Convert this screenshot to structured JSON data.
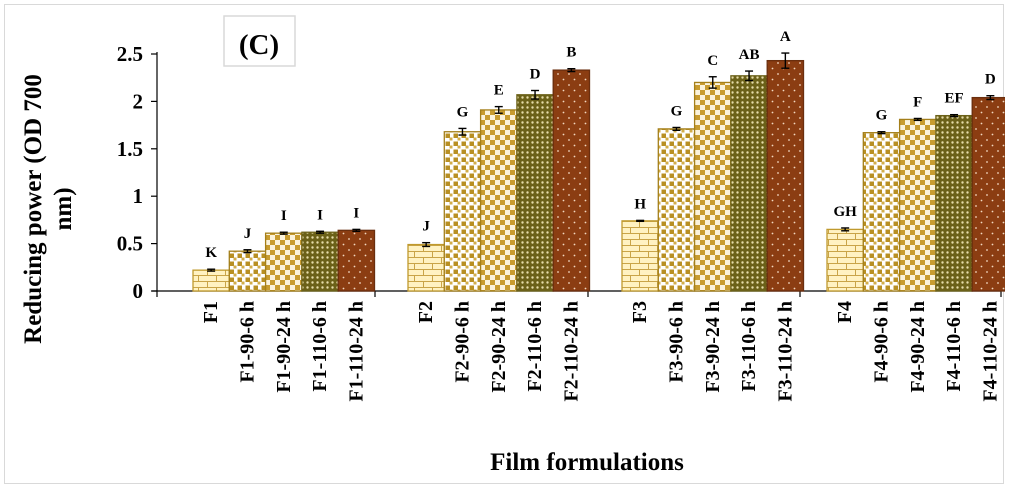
{
  "chart_data": {
    "type": "bar",
    "panel_label": "(C)",
    "xlabel": "Film formulations",
    "ylabel": "Reducing power (OD 700 nm)",
    "ylabel_lines": [
      "Reducing power (OD 700",
      "nm)"
    ],
    "ylim": [
      0,
      2.5
    ],
    "yticks": [
      "0",
      "0.5",
      "1",
      "1.5",
      "2",
      "2.5"
    ],
    "ytick_values": [
      0,
      0.5,
      1,
      1.5,
      2,
      2.5
    ],
    "grid": false,
    "legend": "none",
    "groups": [
      {
        "categories": [
          "F1",
          "F1-90-6 h",
          "F1-90-24 h",
          "F1-110-6 h",
          "F1-110-24 h"
        ],
        "values": [
          0.22,
          0.42,
          0.61,
          0.62,
          0.64
        ],
        "errors": [
          0.01,
          0.015,
          0.01,
          0.01,
          0.01
        ],
        "letters": [
          "K",
          "J",
          "I",
          "I",
          "I"
        ]
      },
      {
        "categories": [
          "F2",
          "F2-90-6 h",
          "F2-90-24 h",
          "F2-110-6 h",
          "F2-110-24 h"
        ],
        "values": [
          0.49,
          1.68,
          1.91,
          2.07,
          2.33
        ],
        "errors": [
          0.02,
          0.035,
          0.035,
          0.045,
          0.015
        ],
        "letters": [
          "J",
          "G",
          "E",
          "D",
          "B"
        ]
      },
      {
        "categories": [
          "F3",
          "F3-90-6 h",
          "F3-90-24 h",
          "F3-110-6 h",
          "F3-110-24 h"
        ],
        "values": [
          0.74,
          1.71,
          2.2,
          2.27,
          2.43
        ],
        "errors": [
          0.005,
          0.015,
          0.06,
          0.05,
          0.08
        ],
        "letters": [
          "H",
          "G",
          "C",
          "AB",
          "A"
        ]
      },
      {
        "categories": [
          "F4",
          "F4-90-6 h",
          "F4-90-24 h",
          "F4-110-6 h",
          "F4-110-24 h"
        ],
        "values": [
          0.65,
          1.67,
          1.81,
          1.85,
          2.04
        ],
        "errors": [
          0.015,
          0.01,
          0.01,
          0.01,
          0.02
        ],
        "letters": [
          "GH",
          "G",
          "F",
          "EF",
          "D"
        ]
      }
    ],
    "bar_styles": [
      {
        "pattern": "brick",
        "fill": "#fff2c2",
        "stroke": "#c09a2e"
      },
      {
        "pattern": "squares",
        "fill": "#ffffff",
        "stroke": "#a47f1a"
      },
      {
        "pattern": "checker",
        "fill": "#ffffff",
        "stroke": "#a47f1a"
      },
      {
        "pattern": "dots-olive",
        "fill": "#6b6118",
        "stroke": "#6b6118"
      },
      {
        "pattern": "dots-brown",
        "fill": "#8b3d12",
        "stroke": "#6a2e0e"
      }
    ],
    "colors": {
      "axis": "#000000",
      "frame": "#d9d9d9",
      "square_fill": "#c0992a",
      "brick_line": "#c9a448"
    }
  }
}
